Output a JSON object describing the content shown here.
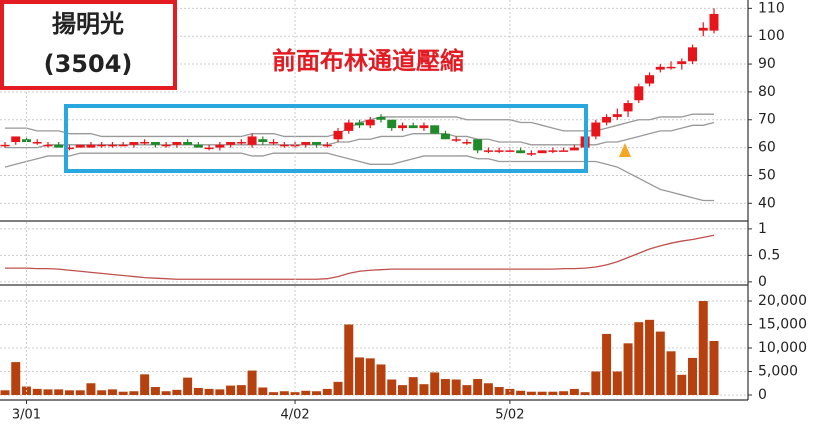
{
  "stock_name": "揚明光",
  "stock_code": "(3504)",
  "annotation": "前面布林通道壓縮",
  "chart_data": [
    {
      "type": "candlestick",
      "open": [
        61,
        62,
        63,
        62,
        61,
        61,
        60,
        60,
        60,
        61,
        61,
        61,
        61,
        62,
        62,
        61,
        61,
        62,
        61,
        60,
        60,
        61,
        62,
        61,
        63,
        62,
        61,
        61,
        61,
        62,
        61,
        63,
        66,
        69,
        68,
        71,
        70,
        67,
        68,
        67,
        68,
        65,
        63,
        62,
        63,
        59,
        59,
        59,
        59,
        58,
        58,
        59,
        59,
        59,
        60,
        64,
        69,
        71,
        73,
        77,
        83,
        88,
        89,
        90,
        91,
        102,
        102
      ],
      "high": [
        62,
        64,
        64,
        63,
        62,
        62,
        61,
        61,
        62,
        62,
        62,
        62,
        62,
        63,
        62,
        62,
        62,
        63,
        62,
        61,
        62,
        62,
        63,
        65,
        64,
        63,
        62,
        62,
        62,
        62,
        62,
        67,
        70,
        70,
        71,
        72,
        70,
        69,
        69,
        69,
        68,
        66,
        64,
        63,
        63,
        60,
        60,
        60,
        60,
        59,
        59,
        60,
        60,
        61,
        65,
        70,
        72,
        74,
        77,
        83,
        87,
        90,
        91,
        92,
        97,
        105,
        110
      ],
      "low": [
        60,
        61,
        62,
        61,
        60,
        60,
        59,
        60,
        60,
        60,
        60,
        61,
        60,
        61,
        60,
        60,
        60,
        61,
        60,
        59,
        59,
        60,
        61,
        60,
        61,
        61,
        60,
        60,
        60,
        60,
        60,
        62,
        65,
        67,
        67,
        69,
        66,
        66,
        67,
        66,
        65,
        63,
        62,
        61,
        58,
        58,
        58,
        59,
        58,
        57,
        58,
        58,
        59,
        59,
        59,
        63,
        68,
        70,
        71,
        76,
        82,
        87,
        88,
        88,
        90,
        100,
        101
      ],
      "close": [
        61,
        64,
        62,
        62,
        61,
        60,
        60,
        61,
        61,
        61,
        61,
        61,
        62,
        62,
        61,
        61,
        62,
        61,
        60,
        60,
        61,
        62,
        62,
        64,
        62,
        62,
        61,
        61,
        62,
        61,
        61,
        66,
        69,
        68,
        70,
        70,
        67,
        68,
        67,
        68,
        65,
        63,
        63,
        62,
        59,
        59,
        59,
        59,
        58,
        58,
        59,
        59,
        59,
        60,
        64,
        69,
        71,
        72,
        76,
        82,
        86,
        89,
        89,
        91,
        96,
        103,
        108
      ],
      "up_color": "#e8141c",
      "down_color": "#1f8a2a",
      "bands": {
        "upper": [
          67,
          67,
          67,
          66,
          66,
          66,
          65,
          65,
          65,
          64,
          64,
          64,
          64,
          64,
          64,
          64,
          64,
          64,
          64,
          64,
          64,
          64,
          64,
          65,
          65,
          65,
          64,
          64,
          64,
          64,
          64,
          65,
          67,
          69,
          70,
          71,
          71,
          71,
          71,
          71,
          71,
          71,
          71,
          70,
          70,
          70,
          70,
          70,
          69,
          69,
          68,
          67,
          66,
          66,
          66,
          66,
          67,
          68,
          69,
          70,
          70,
          71,
          71,
          71,
          72,
          72,
          72
        ],
        "middle": [
          60,
          60,
          60,
          60,
          61,
          61,
          61,
          61,
          61,
          61,
          61,
          61,
          61,
          61,
          61,
          61,
          61,
          61,
          61,
          61,
          61,
          61,
          61,
          61,
          61,
          61,
          61,
          61,
          61,
          61,
          61,
          62,
          62,
          63,
          63,
          64,
          64,
          64,
          65,
          65,
          65,
          65,
          64,
          64,
          63,
          63,
          62,
          62,
          62,
          61,
          61,
          61,
          61,
          61,
          61,
          61,
          62,
          62,
          63,
          64,
          65,
          66,
          66,
          67,
          68,
          68,
          69
        ],
        "lower": [
          53,
          54,
          55,
          56,
          57,
          57,
          57,
          58,
          58,
          58,
          58,
          58,
          58,
          58,
          58,
          58,
          58,
          58,
          58,
          58,
          58,
          58,
          58,
          57,
          57,
          58,
          58,
          58,
          58,
          58,
          58,
          57,
          56,
          55,
          54,
          54,
          54,
          55,
          56,
          57,
          57,
          57,
          57,
          57,
          56,
          56,
          55,
          55,
          55,
          55,
          55,
          55,
          55,
          55,
          55,
          55,
          54,
          53,
          51,
          49,
          47,
          45,
          44,
          43,
          42,
          41,
          41
        ]
      },
      "band_color": "#999999",
      "ylim": [
        34,
        113
      ],
      "yticks": [
        40,
        50,
        60,
        70,
        80,
        90,
        100,
        110
      ],
      "grid": true
    },
    {
      "type": "line",
      "values": [
        0.26,
        0.26,
        0.26,
        0.25,
        0.25,
        0.24,
        0.22,
        0.2,
        0.18,
        0.16,
        0.14,
        0.12,
        0.1,
        0.08,
        0.07,
        0.06,
        0.05,
        0.05,
        0.05,
        0.05,
        0.05,
        0.05,
        0.05,
        0.05,
        0.05,
        0.05,
        0.05,
        0.05,
        0.05,
        0.05,
        0.06,
        0.1,
        0.16,
        0.2,
        0.22,
        0.23,
        0.24,
        0.24,
        0.24,
        0.24,
        0.24,
        0.24,
        0.24,
        0.24,
        0.24,
        0.24,
        0.24,
        0.24,
        0.24,
        0.24,
        0.24,
        0.24,
        0.25,
        0.25,
        0.26,
        0.28,
        0.32,
        0.38,
        0.46,
        0.54,
        0.62,
        0.68,
        0.73,
        0.77,
        0.8,
        0.84,
        0.88
      ],
      "color": "#c0504d",
      "ylim": [
        -0.04,
        1.13
      ],
      "yticks": [
        0,
        0.5,
        1
      ],
      "grid": true
    },
    {
      "type": "bar",
      "categories": [
        null,
        null,
        "3/01",
        null,
        null,
        null,
        null,
        null,
        null,
        null,
        null,
        null,
        null,
        null,
        null,
        null,
        null,
        null,
        null,
        null,
        null,
        null,
        null,
        null,
        null,
        null,
        null,
        "4/02",
        null,
        null,
        null,
        null,
        null,
        null,
        null,
        null,
        null,
        null,
        null,
        null,
        null,
        null,
        null,
        null,
        null,
        null,
        null,
        "5/02",
        null,
        null,
        null,
        null,
        null,
        null,
        null,
        null,
        null,
        null,
        null,
        null,
        null,
        null,
        null,
        null,
        null,
        null,
        null
      ],
      "values": [
        1000,
        7000,
        1800,
        1300,
        1200,
        1200,
        1000,
        1000,
        2500,
        1000,
        1200,
        700,
        800,
        4400,
        1700,
        800,
        1100,
        3700,
        1500,
        1300,
        1200,
        2000,
        2100,
        5200,
        1600,
        600,
        800,
        600,
        900,
        800,
        1300,
        2800,
        15000,
        8000,
        7800,
        6500,
        3300,
        2100,
        3800,
        2300,
        4800,
        3400,
        3300,
        2100,
        3400,
        2500,
        1700,
        1300,
        900,
        700,
        700,
        700,
        800,
        1300,
        600,
        5000,
        13000,
        5000,
        11000,
        15500,
        16000,
        13500,
        9300,
        4300,
        7900,
        20000,
        11500
      ],
      "color": "#b7410e",
      "ylim": [
        0,
        23200
      ],
      "yticks": [
        0,
        {
          "value": 5000,
          "label": "5,000"
        },
        {
          "value": 10000,
          "label": "10,000"
        },
        {
          "value": 15000,
          "label": "15,000"
        },
        {
          "value": 20000,
          "label": "20,000"
        }
      ],
      "grid": true
    }
  ]
}
